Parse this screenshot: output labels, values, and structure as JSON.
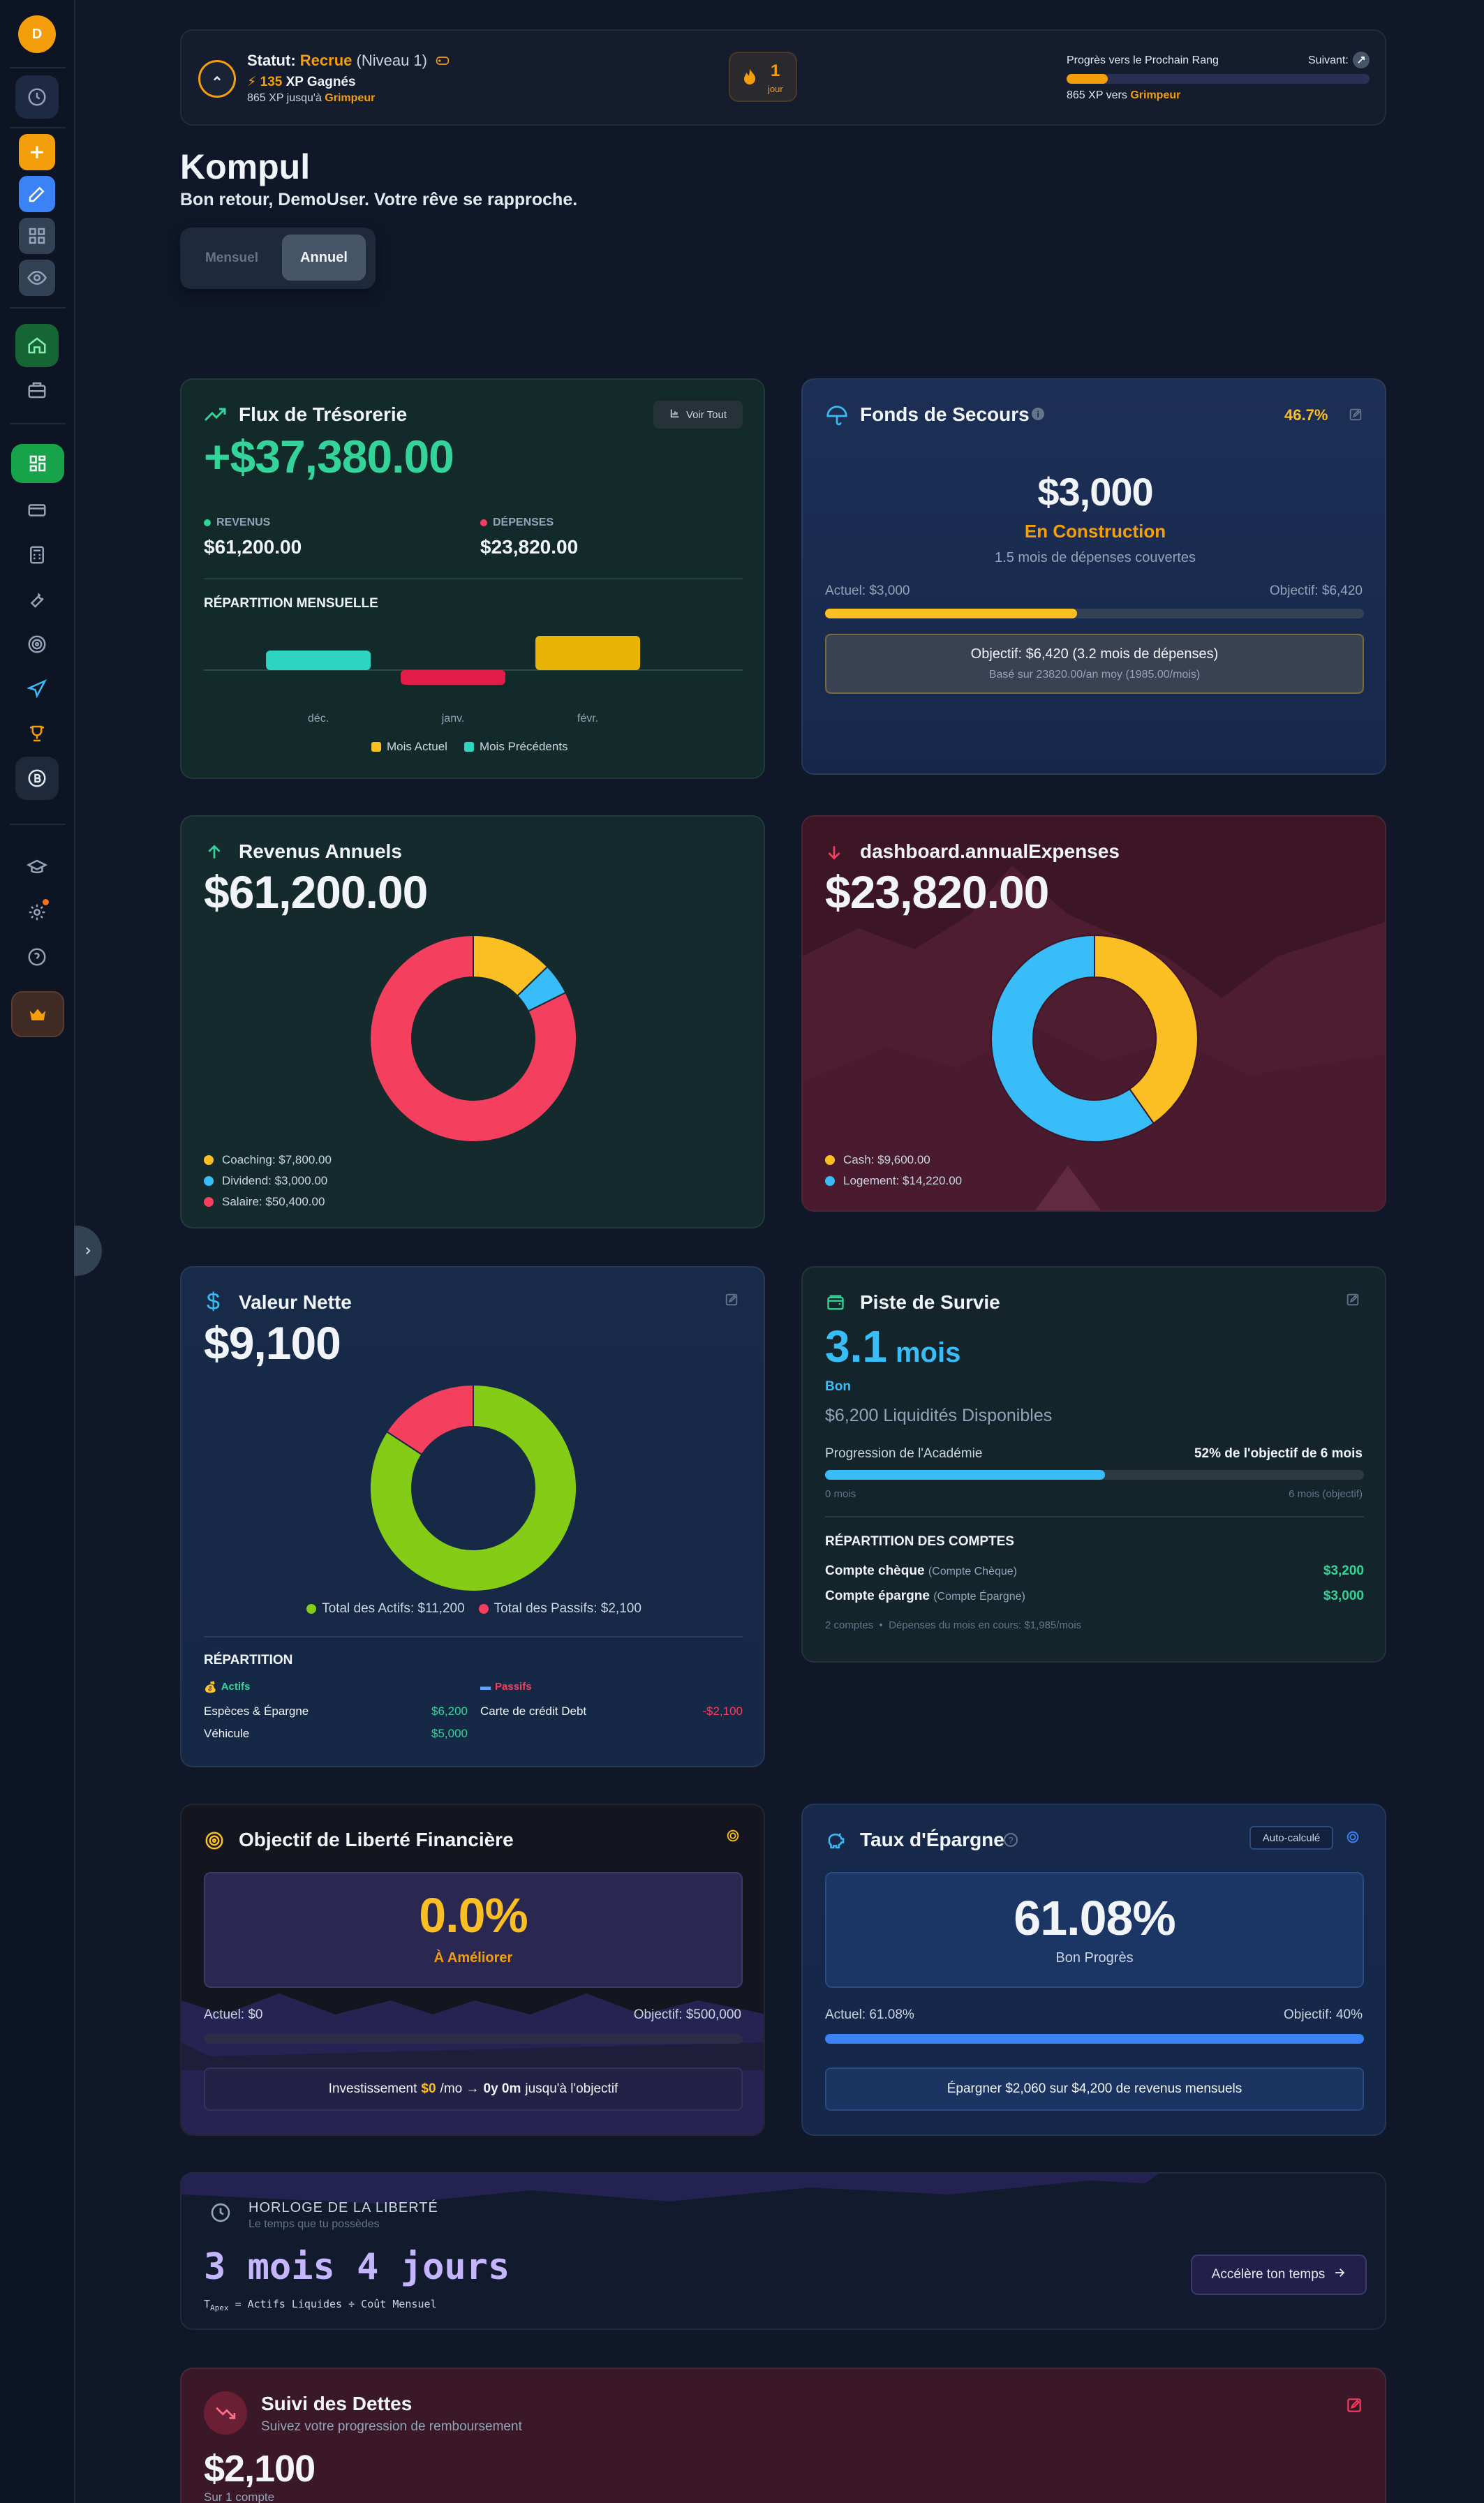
{
  "sidebar": {
    "avatar_initial": "D",
    "icons": [
      "clock-icon",
      "plus-icon",
      "pencil-icon",
      "grid-icon",
      "eye-icon",
      "home-icon",
      "briefcase-icon",
      "dashboard-icon",
      "card-icon",
      "calculator-icon",
      "wrench-icon",
      "target-icon",
      "plane-icon",
      "trophy-icon",
      "bitcoin-icon",
      "graduation-icon",
      "settings-icon",
      "help-icon",
      "crown-icon"
    ]
  },
  "status": {
    "label": "Statut:",
    "rank": "Recrue",
    "level": "(Niveau 1)",
    "xp_value": "135",
    "xp_label": "XP Gagnés",
    "xp_remaining": "865 XP jusqu'à",
    "next_rank": "Grimpeur",
    "streak_value": "1",
    "streak_unit": "jour",
    "progress_label": "Progrès vers le Prochain Rang",
    "next_label": "Suivant:",
    "progress_fraction": 0.135,
    "progress_sub": "865 XP vers"
  },
  "header": {
    "title": "Kompul",
    "subtitle": "Bon retour, DemoUser. Votre rêve se rapproche.",
    "toggle": [
      "Mensuel",
      "Annuel"
    ],
    "toggle_active": "Annuel"
  },
  "cashflow": {
    "title": "Flux de Trésorerie",
    "view_all": "Voir Tout",
    "amount": "+$37,380.00",
    "revenue_label": "REVENUS",
    "revenue_value": "$61,200.00",
    "expense_label": "DÉPENSES",
    "expense_value": "$23,820.00",
    "breakdown_label": "RÉPARTITION MENSUELLE",
    "legend_current": "Mois Actuel",
    "legend_previous": "Mois Précédents"
  },
  "emergency": {
    "title": "Fonds de Secours",
    "percent": "46.7%",
    "amount": "$3,000",
    "state": "En Construction",
    "coverage": "1.5 mois de dépenses couvertes",
    "current": "Actuel: $3,000",
    "target": "Objectif: $6,420",
    "fraction": 0.467,
    "box_main": "Objectif: $6,420 (3.2 mois de dépenses)",
    "box_sub": "Basé sur 23820.00/an moy (1985.00/mois)"
  },
  "annual_income": {
    "title": "Revenus Annuels",
    "amount": "$61,200.00",
    "legend": [
      "Coaching: $7,800.00",
      "Dividend: $3,000.00",
      "Salaire: $50,400.00"
    ]
  },
  "annual_expenses": {
    "title": "dashboard.annualExpenses",
    "amount": "$23,820.00",
    "legend": [
      "Cash: $9,600.00",
      "Logement: $14,220.00"
    ]
  },
  "net_worth": {
    "title": "Valeur Nette",
    "amount": "$9,100",
    "legend_assets": "Total des Actifs: $11,200",
    "legend_liabilities": "Total des Passifs: $2,100",
    "breakdown_label": "RÉPARTITION",
    "assets_label": "Actifs",
    "liabilities_label": "Passifs",
    "assets": [
      {
        "name": "Espèces & Épargne",
        "value": "$6,200"
      },
      {
        "name": "Véhicule",
        "value": "$5,000"
      }
    ],
    "liabilities": [
      {
        "name": "Carte de crédit Debt",
        "value": "-$2,100"
      }
    ]
  },
  "runway": {
    "title": "Piste de Survie",
    "value": "3.1",
    "unit": "mois",
    "rating": "Bon",
    "liquid": "$6,200 Liquidités Disponibles",
    "progress_label": "Progression de l'Académie",
    "progress_goal": "52% de l'objectif de 6 mois",
    "fraction": 0.52,
    "min_label": "0 mois",
    "max_label": "6 mois (objectif)",
    "accounts_label": "RÉPARTITION DES COMPTES",
    "accounts": [
      {
        "name": "Compte chèque",
        "type": "(Compte Chèque)",
        "value": "$3,200"
      },
      {
        "name": "Compte épargne",
        "type": "(Compte Épargne)",
        "value": "$3,000"
      }
    ],
    "footer_count": "2 comptes",
    "footer_spend": "Dépenses du mois en cours: $1,985/mois"
  },
  "freedom": {
    "title": "Objectif de Liberté Financière",
    "percent": "0.0%",
    "state": "À Améliorer",
    "current": "Actuel: $0",
    "target": "Objectif: $500,000",
    "fraction": 0.0,
    "invest_prefix": "Investissement",
    "invest_amount": "$0",
    "invest_mid": "/mo →",
    "invest_time": "0y 0m",
    "invest_suffix": "jusqu'à l'objectif"
  },
  "savings": {
    "title": "Taux d'Épargne",
    "badge": "Auto-calculé",
    "percent": "61.08%",
    "state": "Bon Progrès",
    "current": "Actuel: 61.08%",
    "target": "Objectif: 40%",
    "fraction": 1.0,
    "message": "Épargner $2,060 sur $4,200 de revenus mensuels"
  },
  "clock": {
    "title": "HORLOGE DE LA LIBERTÉ",
    "subtitle": "Le temps que tu possèdes",
    "value": "3 mois 4 jours",
    "formula_prefix": "T",
    "formula_sub": "Apex",
    "formula_rest": "= Actifs Liquides ÷ Coût Mensuel",
    "button": "Accélère ton temps"
  },
  "debts": {
    "title": "Suivi des Dettes",
    "subtitle": "Suivez votre progression de remboursement",
    "amount": "$2,100",
    "count": "Sur 1 compte"
  },
  "colors": {
    "green": "#34d399",
    "yellow": "#fbbf24",
    "red": "#f43f5e",
    "blue": "#38bdf8",
    "lime": "#84cc16",
    "bg": "#0f1729"
  },
  "chart_data": [
    {
      "type": "bar",
      "categories": [
        "déc.",
        "janv.",
        "févr."
      ],
      "values": [
        2,
        -1.5,
        3.5
      ],
      "series": [
        {
          "name": "Mois Actuel"
        },
        {
          "name": "Mois Précédents"
        }
      ]
    },
    {
      "type": "pie",
      "labels": [
        "Coaching",
        "Dividend",
        "Salaire"
      ],
      "values": [
        7800,
        3000,
        50400
      ],
      "colors": [
        "#fbbf24",
        "#38bdf8",
        "#f43f5e"
      ]
    },
    {
      "type": "pie",
      "labels": [
        "Cash",
        "Logement"
      ],
      "values": [
        9600,
        14220
      ],
      "colors": [
        "#fbbf24",
        "#38bdf8"
      ]
    },
    {
      "type": "pie",
      "labels": [
        "Total des Actifs",
        "Total des Passifs"
      ],
      "values": [
        11200,
        2100
      ],
      "colors": [
        "#84cc16",
        "#f43f5e"
      ]
    }
  ]
}
